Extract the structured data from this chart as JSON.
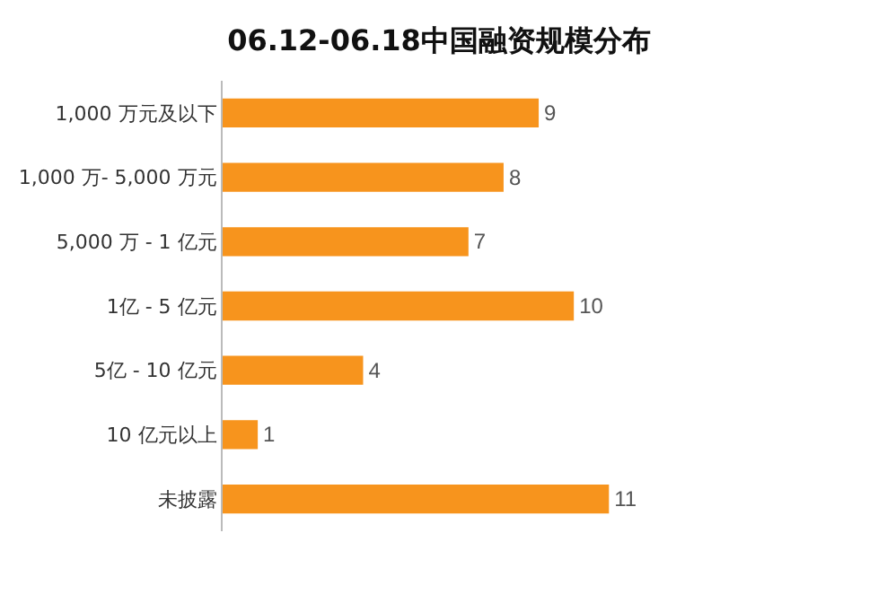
{
  "chart_data": {
    "type": "bar",
    "orientation": "horizontal",
    "title": "06.12-06.18中国融资规模分布",
    "categories": [
      "1,000 万元及以下",
      "1,000 万- 5,000 万元",
      "5,000 万 - 1 亿元",
      "1亿 - 5 亿元",
      "5亿 - 10 亿元",
      "10 亿元以上",
      "未披露"
    ],
    "values": [
      9,
      8,
      7,
      10,
      4,
      1,
      11
    ],
    "color": "#f7941d",
    "data_labels": true
  }
}
